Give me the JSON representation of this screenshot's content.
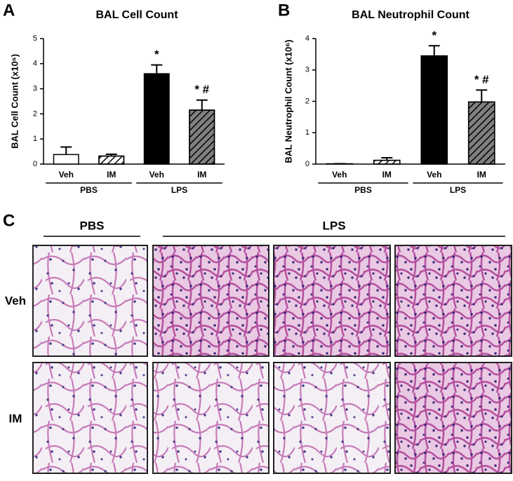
{
  "chart_data": [
    {
      "type": "bar",
      "panel_label": "A",
      "title": "BAL Cell Count",
      "y_label": "BAL Cell Count (x10⁶)",
      "categories": [
        "Veh",
        "IM",
        "Veh",
        "IM"
      ],
      "groups": [
        "PBS",
        "LPS"
      ],
      "values": [
        0.38,
        0.32,
        3.6,
        2.15
      ],
      "errors": [
        0.3,
        0.07,
        0.35,
        0.4
      ],
      "colors": [
        "#ffffff",
        "#ffffff",
        "#000000",
        "#808080"
      ],
      "patterns": [
        "solid",
        "hatch",
        "solid",
        "hatch"
      ],
      "annotations": [
        {
          "index": 2,
          "text": "*"
        },
        {
          "index": 3,
          "text": "* #"
        }
      ],
      "ylim": [
        0,
        5
      ],
      "yticks": [
        0,
        1,
        2,
        3,
        4,
        5
      ]
    },
    {
      "type": "bar",
      "panel_label": "B",
      "title": "BAL Neutrophil Count",
      "y_label": "BAL Neutrophil Count (x10⁶)",
      "categories": [
        "Veh",
        "IM",
        "Veh",
        "IM"
      ],
      "groups": [
        "PBS",
        "LPS"
      ],
      "values": [
        0.01,
        0.12,
        3.45,
        1.98
      ],
      "errors": [
        0,
        0.08,
        0.32,
        0.38
      ],
      "colors": [
        "#ffffff",
        "#ffffff",
        "#000000",
        "#808080"
      ],
      "patterns": [
        "solid",
        "hatch",
        "solid",
        "hatch"
      ],
      "annotations": [
        {
          "index": 2,
          "text": "*"
        },
        {
          "index": 3,
          "text": "* #"
        }
      ],
      "ylim": [
        0,
        4
      ],
      "yticks": [
        0,
        1,
        2,
        3,
        4
      ]
    }
  ],
  "panel_c": {
    "label": "C",
    "columns": [
      "PBS",
      "LPS"
    ],
    "rows": [
      "Veh",
      "IM"
    ]
  }
}
